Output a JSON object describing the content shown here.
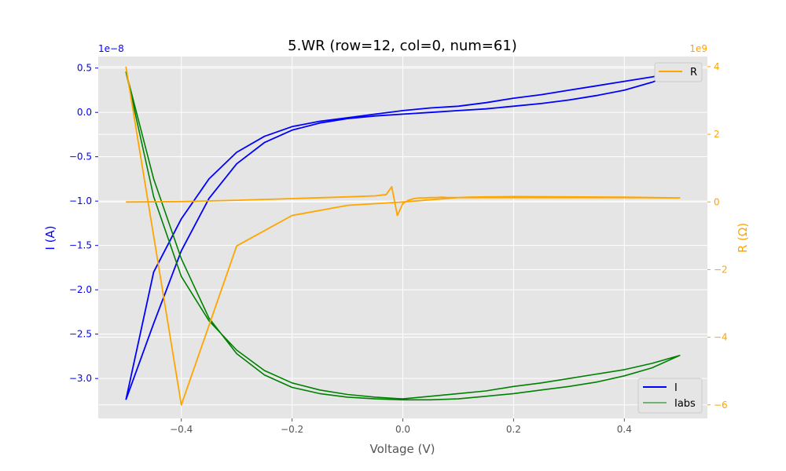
{
  "chart_data": {
    "type": "line",
    "title": "5.WR (row=12, col=0, num=61)",
    "xlabel": "Voltage (V)",
    "ylabel_left": "I (A)",
    "ylabel_right": "R (Ω)",
    "left_exponent": "1e−8",
    "right_exponent": "1e9",
    "xlim": [
      -0.55,
      0.55
    ],
    "ylim_left": [
      -3.45,
      0.63
    ],
    "ylim_right": [
      -6.4,
      4.3
    ],
    "grid": true,
    "x_ticks": [
      -0.4,
      -0.2,
      0.0,
      0.2,
      0.4
    ],
    "x_tick_labels": [
      "−0.4",
      "−0.2",
      "0.0",
      "0.2",
      "0.4"
    ],
    "left_ticks": [
      0.5,
      0.0,
      -0.5,
      -1.0,
      -1.5,
      -2.0,
      -2.5,
      -3.0
    ],
    "left_tick_labels": [
      "0.5",
      "0.0",
      "−0.5",
      "−1.0",
      "−1.5",
      "−2.0",
      "−2.5",
      "−3.0"
    ],
    "right_ticks": [
      4,
      2,
      0,
      -2,
      -4,
      -6
    ],
    "right_tick_labels": [
      "4",
      "2",
      "0",
      "−2",
      "−4",
      "−6"
    ],
    "colors": {
      "I": "#0000ff",
      "Iabs": "#008000",
      "R": "#ffa500",
      "left_axis": "#0000ff",
      "right_axis": "#ffa500"
    },
    "legend_upper": {
      "placement": "top-right",
      "entries": [
        "R"
      ]
    },
    "legend_lower": {
      "placement": "bottom-right",
      "entries": [
        "I",
        "Iabs"
      ]
    },
    "series": [
      {
        "name": "I",
        "axis": "left",
        "unit_scale": "1e-8",
        "x": [
          -0.5,
          -0.45,
          -0.4,
          -0.35,
          -0.3,
          -0.25,
          -0.2,
          -0.15,
          -0.1,
          -0.05,
          0.0,
          0.05,
          0.1,
          0.15,
          0.2,
          0.25,
          0.3,
          0.35,
          0.4,
          0.45,
          0.5,
          0.45,
          0.4,
          0.35,
          0.3,
          0.25,
          0.2,
          0.15,
          0.1,
          0.05,
          0.0,
          -0.05,
          -0.1,
          -0.15,
          -0.2,
          -0.25,
          -0.3,
          -0.35,
          -0.4,
          -0.45,
          -0.5
        ],
        "y": [
          -3.24,
          -2.38,
          -1.56,
          -0.97,
          -0.58,
          -0.34,
          -0.2,
          -0.12,
          -0.07,
          -0.04,
          -0.02,
          0.0,
          0.02,
          0.04,
          0.07,
          0.1,
          0.14,
          0.19,
          0.25,
          0.34,
          0.46,
          0.4,
          0.35,
          0.3,
          0.25,
          0.2,
          0.16,
          0.11,
          0.07,
          0.05,
          0.02,
          -0.02,
          -0.06,
          -0.1,
          -0.16,
          -0.27,
          -0.45,
          -0.75,
          -1.2,
          -1.8,
          -3.24
        ]
      },
      {
        "name": "Iabs",
        "axis": "left",
        "unit_scale": "1e-8",
        "x": [
          -0.5,
          -0.45,
          -0.4,
          -0.35,
          -0.3,
          -0.25,
          -0.2,
          -0.15,
          -0.1,
          -0.05,
          0.0,
          0.05,
          0.1,
          0.15,
          0.2,
          0.25,
          0.3,
          0.35,
          0.4,
          0.45,
          0.5,
          0.45,
          0.4,
          0.35,
          0.3,
          0.25,
          0.2,
          0.15,
          0.1,
          0.05,
          0.0,
          -0.05,
          -0.1,
          -0.15,
          -0.2,
          -0.25,
          -0.3,
          -0.35,
          -0.4,
          -0.45,
          -0.5
        ],
        "y": [
          0.46,
          -0.75,
          -1.65,
          -2.32,
          -2.72,
          -2.96,
          -3.1,
          -3.17,
          -3.21,
          -3.23,
          -3.24,
          -3.24,
          -3.23,
          -3.2,
          -3.17,
          -3.13,
          -3.09,
          -3.04,
          -2.97,
          -2.88,
          -2.74,
          -2.83,
          -2.9,
          -2.95,
          -3.0,
          -3.05,
          -3.09,
          -3.14,
          -3.17,
          -3.2,
          -3.23,
          -3.21,
          -3.18,
          -3.13,
          -3.05,
          -2.91,
          -2.68,
          -2.35,
          -1.85,
          -0.95,
          0.46
        ]
      },
      {
        "name": "R",
        "axis": "right",
        "unit_scale": "1e9",
        "x": [
          -0.5,
          -0.4,
          -0.3,
          -0.2,
          -0.1,
          -0.05,
          -0.03,
          -0.02,
          -0.01,
          0.0,
          0.01,
          0.02,
          0.03,
          0.04,
          0.05,
          0.06,
          0.07,
          0.08,
          0.09,
          0.1,
          0.12,
          0.15,
          0.2,
          0.3,
          0.4,
          0.5,
          0.4,
          0.3,
          0.2,
          0.1,
          0.0,
          -0.1,
          -0.2,
          -0.3,
          -0.4,
          -0.5
        ],
        "y": [
          0.0,
          0.01,
          0.05,
          0.1,
          0.15,
          0.18,
          0.22,
          0.45,
          -0.4,
          -0.05,
          0.05,
          0.1,
          0.12,
          0.12,
          0.13,
          0.13,
          0.14,
          0.13,
          0.13,
          0.13,
          0.14,
          0.15,
          0.16,
          0.15,
          0.14,
          0.12,
          0.13,
          0.13,
          0.13,
          0.13,
          0.0,
          -0.1,
          -0.4,
          -1.3,
          -6.0,
          4.0
        ]
      }
    ]
  }
}
